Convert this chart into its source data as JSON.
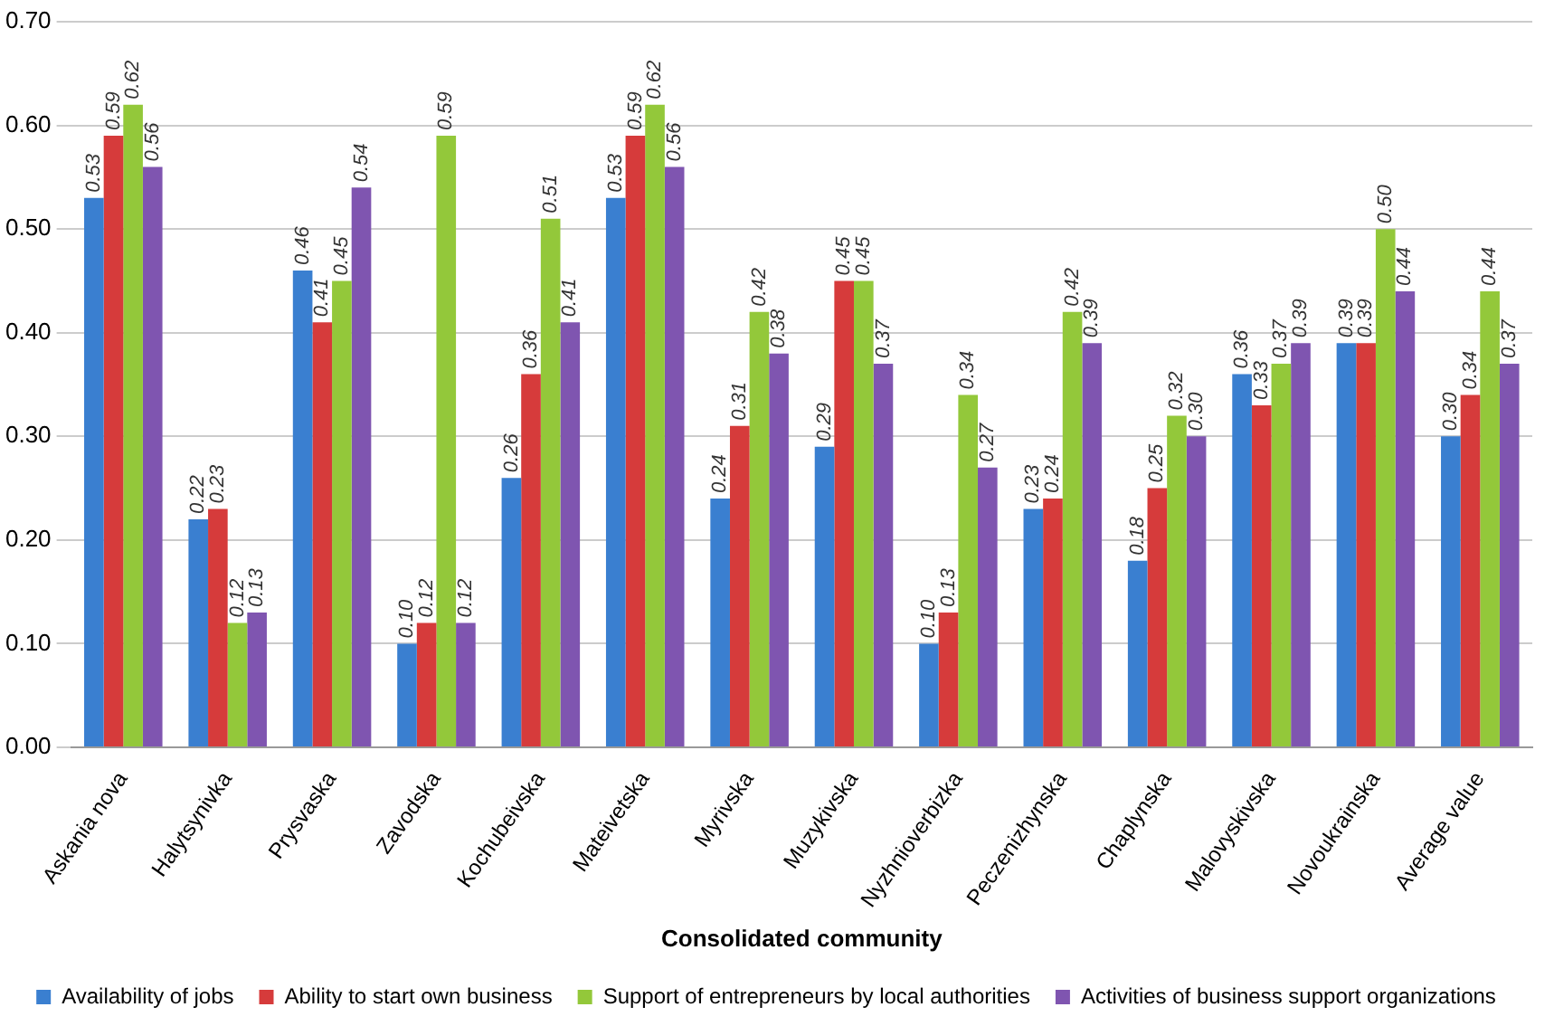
{
  "chart_data": {
    "type": "bar",
    "xlabel": "Consolidated community",
    "categories": [
      "Askania nova",
      "Halytsynivka",
      "Prysvaska",
      "Zavodska",
      "Kochubeivska",
      "Mateivetska",
      "Myrivska",
      "Muzykivska",
      "Nyzhnioverbizka",
      "Peczenizhynska",
      "Chaplynska",
      "Malovyskivska",
      "Novoukrainska",
      "Average value"
    ],
    "series": [
      {
        "name": "Availability of jobs",
        "color": "#3a7fd0",
        "values": [
          0.53,
          0.22,
          0.46,
          0.1,
          0.26,
          0.53,
          0.24,
          0.29,
          0.1,
          0.23,
          0.18,
          0.36,
          0.39,
          0.3
        ],
        "value_labels": [
          "0.53",
          "0.22",
          "0.46",
          "0.10",
          "0.26",
          "0.53",
          "0.24",
          "0.29",
          "0.10",
          "0.23",
          "0.18",
          "0.36",
          "0.39",
          "0.30"
        ]
      },
      {
        "name": "Ability to start own business",
        "color": "#d63b3b",
        "values": [
          0.59,
          0.23,
          0.41,
          0.12,
          0.36,
          0.59,
          0.31,
          0.45,
          0.13,
          0.24,
          0.25,
          0.33,
          0.39,
          0.34
        ],
        "value_labels": [
          "0.59",
          "0.23",
          "0.41",
          "0.12",
          "0.36",
          "0.59",
          "0.31",
          "0.45",
          "0.13",
          "0.24",
          "0.25",
          "0.33",
          "0.39",
          "0.34"
        ]
      },
      {
        "name": "Support of entrepreneurs by local authorities",
        "color": "#93c83a",
        "values": [
          0.62,
          0.12,
          0.45,
          0.59,
          0.51,
          0.62,
          0.42,
          0.45,
          0.34,
          0.42,
          0.32,
          0.37,
          0.5,
          0.44
        ],
        "value_labels": [
          "0.62",
          "0.12",
          "0.45",
          "0.59",
          "0.51",
          "0.62",
          "0.42",
          "0.45",
          "0.34",
          "0.42",
          "0.32",
          "0.37",
          "0.50",
          "0.44"
        ]
      },
      {
        "name": "Activities of business support organizations",
        "color": "#7f55b0",
        "values": [
          0.56,
          0.13,
          0.54,
          0.12,
          0.41,
          0.56,
          0.38,
          0.37,
          0.27,
          0.39,
          0.3,
          0.39,
          0.44,
          0.37
        ],
        "value_labels": [
          "0.56",
          "0.13",
          "0.54",
          "0.12",
          "0.41",
          "0.56",
          "0.38",
          "0.37",
          "0.27",
          "0.39",
          "0.30",
          "0.39",
          "0.44",
          "0.37"
        ]
      }
    ],
    "ylim": [
      0,
      0.7
    ],
    "yticks": [
      {
        "value": 0,
        "label": "0.00"
      },
      {
        "value": 0.1,
        "label": "0.10"
      },
      {
        "value": 0.2,
        "label": "0.20"
      },
      {
        "value": 0.3,
        "label": "0.30"
      },
      {
        "value": 0.4,
        "label": "0.40"
      },
      {
        "value": 0.5,
        "label": "0.50"
      },
      {
        "value": 0.6,
        "label": "0.60"
      },
      {
        "value": 0.7,
        "label": "0.70"
      }
    ],
    "grid": "y",
    "legend": "bottom"
  }
}
